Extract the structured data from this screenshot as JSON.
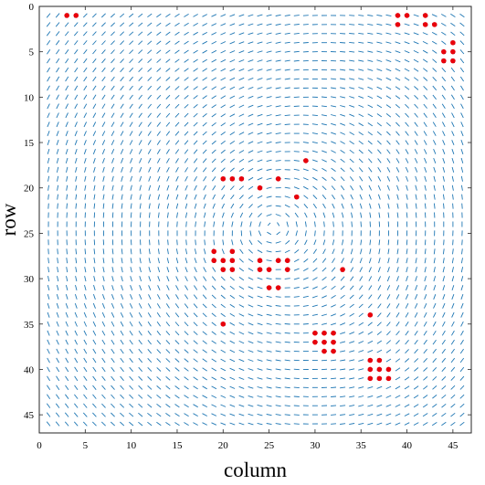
{
  "chart_data": {
    "type": "quiver-scatter",
    "title": "",
    "xlabel": "column",
    "ylabel": "row",
    "xlim": [
      0,
      47
    ],
    "ylim": [
      47,
      0
    ],
    "y_axis_reversed": true,
    "xticks": [
      0,
      5,
      10,
      15,
      20,
      25,
      30,
      35,
      40,
      45
    ],
    "yticks": [
      0,
      5,
      10,
      15,
      20,
      25,
      30,
      35,
      40,
      45
    ],
    "grid": false,
    "box": true,
    "vector_field": {
      "description": "unit-spaced arrow grid over columns 1-46 and rows 1-46, swirling flow",
      "color": "#1f77b4",
      "centers": [
        [
          25,
          24
        ],
        [
          20,
          27
        ],
        [
          38,
          38
        ],
        [
          44,
          4
        ]
      ]
    },
    "points": {
      "color": "#e8000b",
      "coords": [
        [
          3,
          1
        ],
        [
          4,
          1
        ],
        [
          39,
          1
        ],
        [
          40,
          1
        ],
        [
          39,
          2
        ],
        [
          42,
          1
        ],
        [
          42,
          2
        ],
        [
          43,
          2
        ],
        [
          45,
          4
        ],
        [
          44,
          5
        ],
        [
          45,
          5
        ],
        [
          44,
          6
        ],
        [
          45,
          6
        ],
        [
          29,
          17
        ],
        [
          20,
          19
        ],
        [
          21,
          19
        ],
        [
          22,
          19
        ],
        [
          26,
          19
        ],
        [
          24,
          20
        ],
        [
          28,
          21
        ],
        [
          19,
          27
        ],
        [
          21,
          27
        ],
        [
          19,
          28
        ],
        [
          20,
          28
        ],
        [
          21,
          28
        ],
        [
          20,
          29
        ],
        [
          21,
          29
        ],
        [
          24,
          28
        ],
        [
          26,
          28
        ],
        [
          27,
          28
        ],
        [
          24,
          29
        ],
        [
          25,
          29
        ],
        [
          27,
          29
        ],
        [
          33,
          29
        ],
        [
          25,
          31
        ],
        [
          26,
          31
        ],
        [
          36,
          34
        ],
        [
          20,
          35
        ],
        [
          30,
          36
        ],
        [
          31,
          36
        ],
        [
          32,
          36
        ],
        [
          30,
          37
        ],
        [
          31,
          37
        ],
        [
          32,
          37
        ],
        [
          31,
          38
        ],
        [
          32,
          38
        ],
        [
          36,
          39
        ],
        [
          37,
          39
        ],
        [
          36,
          40
        ],
        [
          37,
          40
        ],
        [
          38,
          40
        ],
        [
          36,
          41
        ],
        [
          37,
          41
        ],
        [
          38,
          41
        ]
      ]
    }
  }
}
